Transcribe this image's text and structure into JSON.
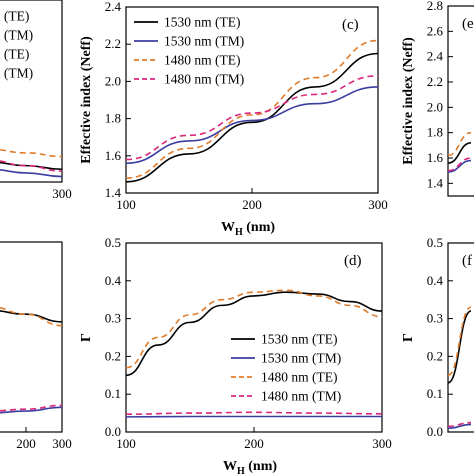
{
  "chart_data": [
    {
      "id": "panel-top-left",
      "type": "line",
      "partial": true,
      "xlabel": "",
      "ylabel": "",
      "xlim": [
        100,
        300
      ],
      "xticks": [
        300
      ],
      "legend_partial": [
        "m (TE)",
        "m (TM)",
        "m (TE)",
        "m (TM)"
      ],
      "series": [
        {
          "color": "#000000",
          "dash": "solid",
          "x": [
            240,
            270,
            300
          ],
          "y": [
            1.51,
            1.49,
            1.47
          ]
        },
        {
          "color": "#3a3ea0",
          "dash": "solid",
          "x": [
            240,
            270,
            300
          ],
          "y": [
            1.47,
            1.45,
            1.43
          ]
        },
        {
          "color": "#e07b2a",
          "dash": "dashed",
          "x": [
            240,
            270,
            300
          ],
          "y": [
            1.58,
            1.56,
            1.54
          ]
        },
        {
          "color": "#d9287e",
          "dash": "dashed",
          "x": [
            240,
            270,
            300
          ],
          "y": [
            1.52,
            1.49,
            1.46
          ]
        }
      ]
    },
    {
      "id": "panel-c",
      "panel_label": "(c)",
      "type": "line",
      "xlabel_main": "W",
      "xlabel_sub": "H",
      "xlabel_unit": " (nm)",
      "ylabel": "Effective index (Neff)",
      "xlim": [
        100,
        300
      ],
      "ylim": [
        1.4,
        2.4
      ],
      "xticks": [
        100,
        200,
        300
      ],
      "yticks": [
        1.4,
        1.6,
        1.8,
        2.0,
        2.2,
        2.4
      ],
      "legend": [
        "1530 nm (TE)",
        "1530 nm (TM)",
        "1480 nm (TE)",
        "1480 nm (TM)"
      ],
      "series": [
        {
          "name": "1530 nm (TE)",
          "color": "#000000",
          "dash": "solid",
          "x": [
            100,
            150,
            200,
            250,
            300
          ],
          "y": [
            1.46,
            1.61,
            1.78,
            1.97,
            2.15
          ]
        },
        {
          "name": "1530 nm (TM)",
          "color": "#3a3ea0",
          "dash": "solid",
          "x": [
            100,
            150,
            200,
            250,
            300
          ],
          "y": [
            1.56,
            1.68,
            1.79,
            1.88,
            1.97
          ]
        },
        {
          "name": "1480 nm (TE)",
          "color": "#e07b2a",
          "dash": "dashed",
          "x": [
            100,
            150,
            200,
            250,
            300
          ],
          "y": [
            1.48,
            1.64,
            1.82,
            2.02,
            2.22
          ]
        },
        {
          "name": "1480 nm (TM)",
          "color": "#d9287e",
          "dash": "dashed",
          "x": [
            100,
            150,
            200,
            250,
            300
          ],
          "y": [
            1.58,
            1.71,
            1.83,
            1.93,
            2.03
          ]
        }
      ]
    },
    {
      "id": "panel-top-right",
      "panel_label": "(e",
      "type": "line",
      "partial": true,
      "ylabel": "Effective index (Neff)",
      "ylim": [
        1.3,
        2.8
      ],
      "yticks": [
        1.4,
        1.6,
        1.8,
        2.0,
        2.2,
        2.4,
        2.6,
        2.8
      ],
      "series": [
        {
          "color": "#000000",
          "dash": "solid",
          "x": [
            0,
            1
          ],
          "y": [
            1.56,
            1.72
          ]
        },
        {
          "color": "#3a3ea0",
          "dash": "solid",
          "x": [
            0,
            1
          ],
          "y": [
            1.49,
            1.58
          ]
        },
        {
          "color": "#e07b2a",
          "dash": "dashed",
          "x": [
            0,
            1
          ],
          "y": [
            1.62,
            1.8
          ]
        },
        {
          "color": "#d9287e",
          "dash": "dashed",
          "x": [
            0,
            1
          ],
          "y": [
            1.5,
            1.6
          ]
        }
      ]
    },
    {
      "id": "panel-bottom-left",
      "type": "line",
      "partial": true,
      "xlim": [
        100,
        300
      ],
      "xticks": [
        200,
        300
      ],
      "series": [
        {
          "color": "#000000",
          "dash": "solid",
          "x": [
            100,
            200,
            300
          ],
          "y": [
            0.32,
            0.31,
            0.29
          ]
        },
        {
          "color": "#e07b2a",
          "dash": "dashed",
          "x": [
            100,
            200,
            300
          ],
          "y": [
            0.33,
            0.31,
            0.28
          ]
        },
        {
          "color": "#3a3ea0",
          "dash": "solid",
          "x": [
            100,
            200,
            300
          ],
          "y": [
            0.05,
            0.055,
            0.065
          ]
        },
        {
          "color": "#d9287e",
          "dash": "dashed",
          "x": [
            100,
            200,
            300
          ],
          "y": [
            0.055,
            0.06,
            0.07
          ]
        }
      ]
    },
    {
      "id": "panel-d",
      "panel_label": "(d)",
      "type": "line",
      "xlabel_main": "W",
      "xlabel_sub": "H",
      "xlabel_unit": " (nm)",
      "ylabel": "Γ",
      "xlim": [
        100,
        300
      ],
      "ylim": [
        0.0,
        0.5
      ],
      "xticks": [
        100,
        200,
        300
      ],
      "yticks": [
        0.0,
        0.1,
        0.2,
        0.3,
        0.4,
        0.5
      ],
      "legend": [
        "1530 nm (TE)",
        "1530 nm (TM)",
        "1480 nm (TE)",
        "1480 nm (TM)"
      ],
      "series": [
        {
          "name": "1530 nm (TE)",
          "color": "#000000",
          "dash": "solid",
          "x": [
            100,
            125,
            150,
            175,
            200,
            225,
            250,
            275,
            300
          ],
          "y": [
            0.15,
            0.23,
            0.29,
            0.335,
            0.36,
            0.37,
            0.365,
            0.345,
            0.32
          ]
        },
        {
          "name": "1530 nm (TM)",
          "color": "#3a3ea0",
          "dash": "solid",
          "x": [
            100,
            150,
            200,
            250,
            300
          ],
          "y": [
            0.04,
            0.041,
            0.041,
            0.041,
            0.041
          ]
        },
        {
          "name": "1480 nm (TE)",
          "color": "#e07b2a",
          "dash": "dashed",
          "x": [
            100,
            125,
            150,
            175,
            200,
            225,
            250,
            275,
            300
          ],
          "y": [
            0.17,
            0.25,
            0.31,
            0.35,
            0.37,
            0.375,
            0.36,
            0.335,
            0.305
          ]
        },
        {
          "name": "1480 nm (TM)",
          "color": "#d9287e",
          "dash": "dashed",
          "x": [
            100,
            150,
            200,
            250,
            300
          ],
          "y": [
            0.047,
            0.05,
            0.052,
            0.05,
            0.048
          ]
        }
      ]
    },
    {
      "id": "panel-bottom-right",
      "panel_label": "(f",
      "type": "line",
      "partial": true,
      "ylabel": "Γ",
      "ylim": [
        0.0,
        0.5
      ],
      "yticks": [
        0.0,
        0.1,
        0.2,
        0.3,
        0.4,
        0.5
      ],
      "series": [
        {
          "color": "#000000",
          "dash": "solid",
          "x": [
            0,
            1
          ],
          "y": [
            0.13,
            0.32
          ]
        },
        {
          "color": "#e07b2a",
          "dash": "dashed",
          "x": [
            0,
            1
          ],
          "y": [
            0.15,
            0.33
          ]
        },
        {
          "color": "#3a3ea0",
          "dash": "solid",
          "x": [
            0,
            1
          ],
          "y": [
            0.01,
            0.02
          ]
        },
        {
          "color": "#d9287e",
          "dash": "dashed",
          "x": [
            0,
            1
          ],
          "y": [
            0.015,
            0.025
          ]
        }
      ]
    }
  ]
}
